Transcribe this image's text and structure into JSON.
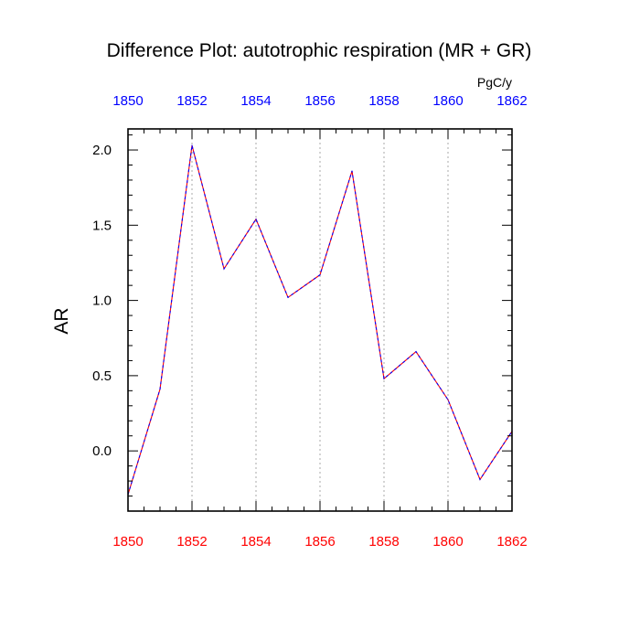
{
  "chart_data": {
    "type": "line",
    "title": "Difference Plot: autotrophic respiration (MR + GR)",
    "units": "PgC/y",
    "ylabel": "AR",
    "xlabel": "",
    "xlim": [
      1850,
      1862
    ],
    "ylim": [
      -0.4,
      2.14
    ],
    "x_ticks": [
      "1850",
      "1852",
      "1854",
      "1856",
      "1858",
      "1860",
      "1862"
    ],
    "y_ticks": [
      "0.0",
      "0.5",
      "1.0",
      "1.5",
      "2.0"
    ],
    "grid": "vertical dotted at major x ticks",
    "series": [
      {
        "x": [
          1850,
          1851,
          1852,
          1853,
          1854,
          1855,
          1856,
          1857,
          1858,
          1859,
          1860,
          1861,
          1862
        ],
        "values": [
          -0.29,
          0.41,
          2.03,
          1.21,
          1.54,
          1.02,
          1.17,
          1.86,
          0.48,
          0.66,
          0.34,
          -0.19,
          0.13
        ],
        "style": "dashed",
        "colors": [
          "#ff0000",
          "#0000ff"
        ]
      }
    ],
    "colors": {
      "bottom_axis_labels": "#ff0000",
      "top_axis_labels": "#0000ff",
      "axis": "#000000",
      "grid": "#aaaaaa"
    }
  }
}
